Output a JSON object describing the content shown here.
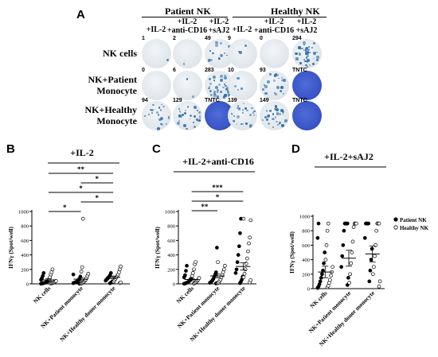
{
  "panelA": {
    "letter": "A",
    "group_headers": [
      "Patient NK",
      "Healthy NK"
    ],
    "columns": [
      [
        "+IL-2"
      ],
      [
        "+IL-2",
        "+anti-CD16"
      ],
      [
        "+IL-2",
        "+sAJ2"
      ],
      [
        "+IL-2"
      ],
      [
        "+IL-2",
        "+anti-CD16"
      ],
      [
        "+IL-2",
        "+sAJ2"
      ]
    ],
    "rows": [
      {
        "label": [
          "NK cells"
        ],
        "counts": [
          "1",
          "2",
          "49",
          "9",
          "0",
          "294"
        ],
        "density": [
          0.02,
          0.02,
          0.25,
          0.05,
          0.0,
          0.7
        ]
      },
      {
        "label": [
          "NK+Patient",
          "Monocyte"
        ],
        "counts": [
          "0",
          "6",
          "283",
          "10",
          "93",
          "TNTC"
        ],
        "density": [
          0.0,
          0.04,
          0.7,
          0.06,
          0.35,
          1.0
        ]
      },
      {
        "label": [
          "NK+Healthy",
          "Monocyte"
        ],
        "counts": [
          "94",
          "129",
          "TNTC",
          "139",
          "149",
          "TNTC"
        ],
        "density": [
          0.35,
          0.45,
          1.0,
          0.45,
          0.5,
          1.0
        ]
      }
    ],
    "colors": {
      "well": "#dfe5ea",
      "spot": "#2f6fa8",
      "tntc": "#3a56c8"
    }
  },
  "panelB": {
    "letter": "B",
    "title": "+IL-2",
    "ylabel": "IFNγ (Spot/well)",
    "yticks": [
      "0",
      "200",
      "400",
      "600",
      "800",
      "1000"
    ],
    "categories": [
      "NK cells",
      "NK+Patient monocyte",
      "NK+Healthy donor monocyte"
    ],
    "significance": [
      {
        "from": 1,
        "to": 3,
        "label": "**"
      },
      {
        "from": 2,
        "to": 3,
        "label": "*"
      },
      {
        "from": 1,
        "to": 3,
        "label": "*"
      },
      {
        "from": 2,
        "to": 3,
        "label": "*"
      },
      {
        "from": 1,
        "to": 2,
        "label": "*"
      }
    ]
  },
  "panelC": {
    "letter": "C",
    "title": "+IL-2+anti-CD16",
    "ylabel": "IFNγ (Spot/well)",
    "yticks": [
      "0",
      "200",
      "400",
      "600",
      "800",
      "1000"
    ],
    "categories": [
      "NK cells",
      "NK+Patient monocyte",
      "NK+Healthy donor monocyte"
    ],
    "significance": [
      {
        "from": 1,
        "to": 3,
        "label": "***"
      },
      {
        "from": 1,
        "to": 3,
        "label": "*"
      },
      {
        "from": 1,
        "to": 2,
        "label": "**"
      }
    ]
  },
  "panelD": {
    "letter": "D",
    "title": "+IL-2+sAJ2",
    "ylabel": "IFNγ (Spot/well)",
    "yticks": [
      "0",
      "200",
      "400",
      "600",
      "800",
      "1000"
    ],
    "categories": [
      "NK cells",
      "NK+Patient monocyte",
      "NK+Healthy donor monocyte"
    ],
    "legend": [
      "Patient NK",
      "Healthy NK"
    ]
  },
  "chart_data": [
    {
      "type": "scatter",
      "title": "+IL-2",
      "ylabel": "IFNγ (Spot/well)",
      "ylim": [
        0,
        1000
      ],
      "categories": [
        "NK cells",
        "NK+Patient monocyte",
        "NK+Healthy donor monocyte"
      ],
      "series": [
        {
          "name": "Patient NK",
          "values": [
            [
              2,
              5,
              8,
              10,
              14,
              20,
              25,
              30,
              40,
              55,
              80,
              110,
              150
            ],
            [
              3,
              6,
              10,
              15,
              20,
              25,
              30,
              40,
              55,
              70,
              100,
              130
            ],
            [
              8,
              15,
              25,
              35,
              45,
              60,
              70,
              85,
              100,
              120,
              150
            ]
          ]
        },
        {
          "name": "Healthy NK",
          "values": [
            [
              4,
              8,
              12,
              18,
              22,
              30,
              40,
              60,
              90,
              130,
              160,
              200
            ],
            [
              5,
              10,
              20,
              30,
              45,
              60,
              80,
              110,
              140,
              170,
              230,
              900
            ],
            [
              10,
              20,
              30,
              50,
              70,
              90,
              110,
              130,
              160,
              200,
              240
            ]
          ]
        }
      ],
      "means": [
        55,
        65,
        90
      ],
      "sem": [
        15,
        20,
        18
      ]
    },
    {
      "type": "scatter",
      "title": "+IL-2+anti-CD16",
      "ylabel": "IFNγ (Spot/well)",
      "ylim": [
        0,
        1000
      ],
      "categories": [
        "NK cells",
        "NK+Patient monocyte",
        "NK+Healthy donor monocyte"
      ],
      "series": [
        {
          "name": "Patient NK",
          "values": [
            [
              2,
              5,
              10,
              15,
              20,
              30,
              40,
              50,
              70,
              90,
              120,
              180,
              250
            ],
            [
              5,
              10,
              15,
              20,
              35,
              50,
              70,
              100,
              130,
              160,
              500
            ],
            [
              10,
              30,
              60,
              100,
              150,
              200,
              300,
              400,
              520,
              700,
              900
            ]
          ]
        },
        {
          "name": "Healthy NK",
          "values": [
            [
              5,
              10,
              20,
              30,
              45,
              60,
              80,
              110,
              150,
              200,
              270,
              300
            ],
            [
              10,
              20,
              40,
              60,
              90,
              120,
              160,
              200,
              250,
              300
            ],
            [
              20,
              50,
              90,
              140,
              200,
              280,
              350,
              450,
              560,
              640,
              880,
              900
            ]
          ]
        }
      ],
      "means": [
        60,
        110,
        240
      ],
      "sem": [
        15,
        25,
        50
      ]
    },
    {
      "type": "scatter",
      "title": "+IL-2+sAJ2",
      "ylabel": "IFNγ (Spot/well)",
      "ylim": [
        0,
        1000
      ],
      "categories": [
        "NK cells",
        "NK+Patient monocyte",
        "NK+Healthy donor monocyte"
      ],
      "legend": "top-right",
      "series": [
        {
          "name": "Patient NK",
          "values": [
            [
              10,
              30,
              60,
              100,
              150,
              200,
              250,
              350,
              500,
              700,
              900
            ],
            [
              50,
              150,
              300,
              450,
              600,
              800,
              900,
              900,
              900,
              900
            ],
            [
              100,
              250,
              400,
              550,
              700,
              900,
              900,
              900,
              900
            ]
          ]
        },
        {
          "name": "Healthy NK",
          "values": [
            [
              20,
              40,
              80,
              120,
              180,
              230,
              300,
              400,
              600,
              800,
              900
            ],
            [
              80,
              200,
              350,
              500,
              650,
              850,
              900,
              900,
              900
            ],
            [
              30,
              100,
              200,
              300,
              450,
              600,
              800,
              900,
              900,
              900
            ]
          ]
        }
      ],
      "means": [
        230,
        420,
        480
      ],
      "sem": [
        80,
        110,
        110
      ]
    }
  ]
}
